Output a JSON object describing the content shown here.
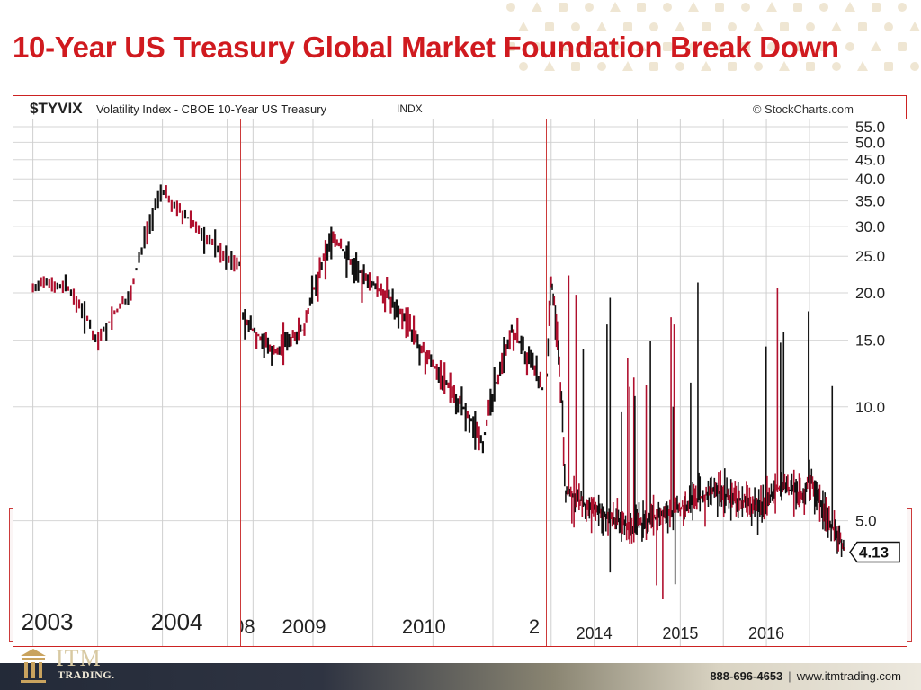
{
  "slide": {
    "title": "10-Year US Treasury Global Market Foundation Break Down",
    "phone": "888-696-4653",
    "separator": "|",
    "website": "www.itmtrading.com",
    "logo_text": "ITM",
    "logo_subtext": "TRADING.",
    "colors": {
      "title": "#d01a1f",
      "footer_dark": "#232a38",
      "footer_gold": "#d8c9a2",
      "bar_red": "#b0102e",
      "bar_black": "#111111"
    }
  },
  "chart": {
    "ticker": "$TYVIX",
    "description": "Volatility Index - CBOE 10-Year US Treasury",
    "exchange": "INDX",
    "source": "© StockCharts.com",
    "last_value_label": "4.13"
  },
  "chart_data": {
    "type": "line",
    "title": "$TYVIX Volatility Index - CBOE 10-Year US Treasury",
    "scale": "log",
    "y_ticks": [
      5.0,
      10.0,
      15.0,
      20.0,
      25.0,
      30.0,
      35.0,
      40.0,
      45.0,
      50.0,
      55.0
    ],
    "y_tick_labels": [
      "5.0",
      "10.0",
      "15.0",
      "20.0",
      "25.0",
      "30.0",
      "35.0",
      "40.0",
      "45.0",
      "50.0",
      "55.0"
    ],
    "ylim": [
      3.0,
      55.0
    ],
    "last_value": 4.13,
    "grid": true,
    "legend": "none",
    "panels": [
      {
        "x_tick_labels": [
          "2003",
          "2004"
        ],
        "x": [
          "2003-01",
          "2003-04",
          "2003-07",
          "2003-10",
          "2004-01",
          "2004-04",
          "2004-07",
          "2004-10"
        ],
        "values": [
          21,
          21,
          15,
          20,
          37,
          30,
          25,
          22
        ]
      },
      {
        "x_tick_labels": [
          "08",
          "2009",
          "2010",
          "2"
        ],
        "x": [
          "2008-06",
          "2008-09",
          "2008-12",
          "2009-03",
          "2009-06",
          "2009-09",
          "2009-12",
          "2010-03",
          "2010-06",
          "2010-09",
          "2010-12"
        ],
        "values": [
          17,
          14,
          16,
          28,
          22,
          19,
          14,
          11,
          8,
          16,
          11
        ]
      },
      {
        "x_tick_labels": [
          "2014",
          "2015",
          "2016"
        ],
        "x": [
          "2013-06",
          "2013-07",
          "2013-09",
          "2013-12",
          "2014-06",
          "2014-12",
          "2015-06",
          "2015-12",
          "2016-03",
          "2016-06",
          "2016-07",
          "2016-09",
          "2016-12"
        ],
        "values": [
          4.5,
          22,
          6,
          5.5,
          4.8,
          5.3,
          6.0,
          5.4,
          6.2,
          5.8,
          6.5,
          5.3,
          4.13
        ]
      }
    ]
  }
}
